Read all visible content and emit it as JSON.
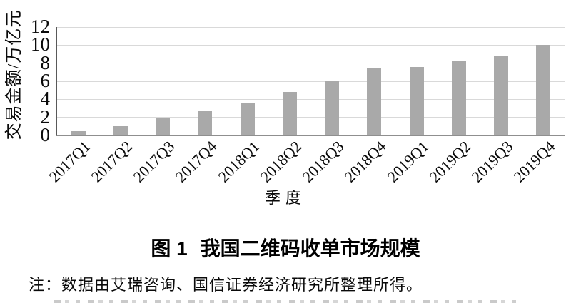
{
  "chart_data": {
    "type": "bar",
    "title": "图1 我国二维码收单市场规模",
    "categories": [
      "2017Q1",
      "2017Q2",
      "2017Q3",
      "2017Q4",
      "2018Q1",
      "2018Q2",
      "2018Q3",
      "2018Q4",
      "2019Q1",
      "2019Q2",
      "2019Q3",
      "2019Q4"
    ],
    "values": [
      0.5,
      1.0,
      1.9,
      2.8,
      3.6,
      4.8,
      6.0,
      7.4,
      7.6,
      8.2,
      8.8,
      10.0
    ],
    "xlabel": "季度",
    "ylabel": "交易金额/万亿元",
    "ylim": [
      0,
      12
    ],
    "yticks": [
      0,
      2,
      4,
      6,
      8,
      10,
      12
    ],
    "grid": true,
    "legend": "none",
    "bar_color": "#a9a9a9",
    "gridline_color": "#d9d9d9"
  },
  "caption": {
    "label": "图 1",
    "title": "我国二维码收单市场规模"
  },
  "note": "注：数据由艾瑞咨询、国信证券经济研究所整理所得。"
}
